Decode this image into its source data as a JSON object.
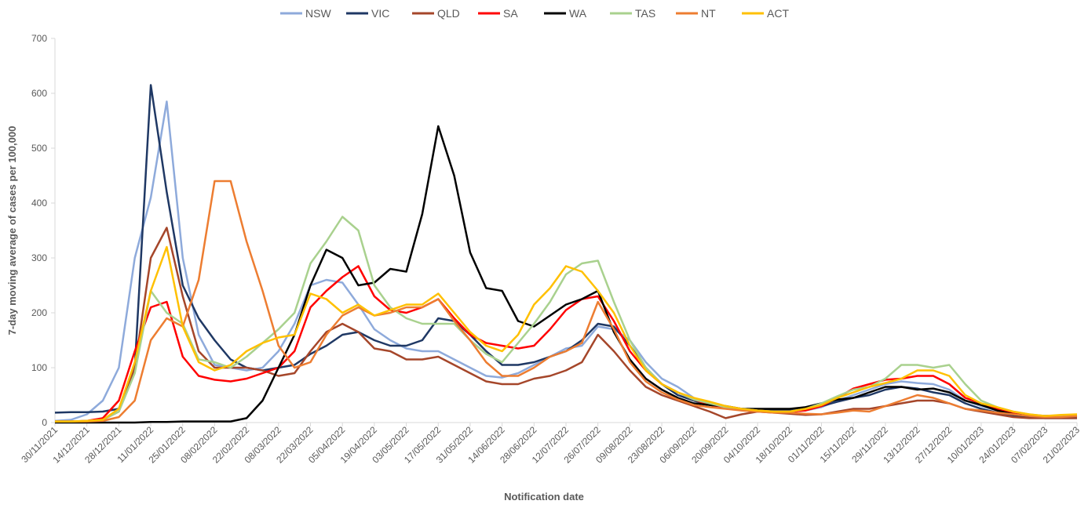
{
  "chart_data": {
    "type": "line",
    "y_label": "7-day moving average of cases per 100,000",
    "x_label": "Notification date",
    "categories": [
      "30/11/2021",
      null,
      "14/12/2021",
      null,
      "28/12/2021",
      null,
      "11/01/2022",
      null,
      "25/01/2022",
      null,
      "08/02/2022",
      null,
      "22/02/2022",
      null,
      "08/03/2022",
      null,
      "22/03/2022",
      null,
      "05/04/2022",
      null,
      "19/04/2022",
      null,
      "03/05/2022",
      null,
      "17/05/2022",
      null,
      "31/05/2022",
      null,
      "14/06/2022",
      null,
      "28/06/2022",
      null,
      "12/07/2022",
      null,
      "26/07/2022",
      null,
      "09/08/2022",
      null,
      "23/08/2022",
      null,
      "06/09/2022",
      null,
      "20/09/2022",
      null,
      "04/10/2022",
      null,
      "18/10/2022",
      null,
      "01/11/2022",
      null,
      "15/11/2022",
      null,
      "29/11/2022",
      null,
      "13/12/2022",
      null,
      "27/12/2022",
      null,
      "10/01/2023",
      null,
      "24/01/2023",
      null,
      "07/02/2023",
      null,
      "21/02/2023"
    ],
    "ylim": [
      0,
      700
    ],
    "yticks": [
      0,
      100,
      200,
      300,
      400,
      500,
      600,
      700
    ],
    "grid": false,
    "legend": "top",
    "series": [
      {
        "name": "NSW",
        "color": "#8eaadb",
        "values": [
          3,
          5,
          15,
          40,
          100,
          300,
          410,
          585,
          300,
          160,
          105,
          100,
          95,
          100,
          130,
          180,
          250,
          260,
          255,
          215,
          170,
          150,
          135,
          130,
          130,
          115,
          100,
          85,
          82,
          90,
          105,
          120,
          135,
          140,
          175,
          170,
          150,
          110,
          80,
          65,
          45,
          35,
          28,
          25,
          22,
          20,
          20,
          22,
          28,
          40,
          50,
          60,
          70,
          75,
          72,
          70,
          60,
          40,
          30,
          22,
          15,
          12,
          10,
          10,
          10
        ]
      },
      {
        "name": "VIC",
        "color": "#1f3864",
        "values": [
          18,
          19,
          19,
          20,
          25,
          100,
          615,
          420,
          250,
          190,
          150,
          115,
          100,
          95,
          100,
          105,
          125,
          140,
          160,
          165,
          150,
          140,
          140,
          150,
          190,
          185,
          160,
          130,
          105,
          105,
          110,
          120,
          130,
          150,
          180,
          175,
          140,
          100,
          70,
          50,
          40,
          32,
          28,
          25,
          23,
          22,
          22,
          25,
          30,
          38,
          45,
          50,
          60,
          65,
          62,
          55,
          50,
          35,
          25,
          18,
          12,
          10,
          8,
          8,
          8
        ]
      },
      {
        "name": "QLD",
        "color": "#a5462a",
        "values": [
          2,
          2,
          3,
          5,
          20,
          100,
          300,
          355,
          230,
          130,
          100,
          100,
          100,
          95,
          85,
          90,
          130,
          165,
          180,
          165,
          135,
          130,
          115,
          115,
          120,
          105,
          90,
          75,
          70,
          70,
          80,
          85,
          95,
          110,
          160,
          130,
          95,
          65,
          50,
          40,
          30,
          20,
          8,
          15,
          20,
          18,
          16,
          14,
          15,
          20,
          25,
          25,
          30,
          35,
          40,
          40,
          35,
          25,
          20,
          15,
          10,
          8,
          8,
          8,
          8
        ]
      },
      {
        "name": "SA",
        "color": "#ff0000",
        "values": [
          2,
          2,
          3,
          8,
          40,
          130,
          210,
          220,
          120,
          85,
          78,
          75,
          80,
          90,
          100,
          130,
          210,
          240,
          265,
          285,
          230,
          205,
          200,
          210,
          225,
          190,
          160,
          145,
          140,
          135,
          140,
          170,
          205,
          225,
          230,
          185,
          130,
          95,
          70,
          55,
          42,
          32,
          28,
          24,
          22,
          20,
          20,
          22,
          30,
          45,
          62,
          70,
          78,
          80,
          85,
          85,
          70,
          45,
          35,
          25,
          18,
          14,
          12,
          12,
          12
        ]
      },
      {
        "name": "WA",
        "color": "#000000",
        "values": [
          0,
          0,
          0,
          0,
          0,
          0,
          1,
          1,
          2,
          2,
          2,
          2,
          8,
          40,
          100,
          160,
          250,
          315,
          300,
          250,
          255,
          280,
          275,
          380,
          540,
          450,
          310,
          245,
          240,
          185,
          175,
          195,
          215,
          225,
          240,
          165,
          115,
          80,
          60,
          45,
          35,
          32,
          30,
          25,
          25,
          25,
          25,
          28,
          35,
          42,
          45,
          55,
          65,
          65,
          60,
          62,
          55,
          40,
          32,
          22,
          15,
          12,
          12,
          12,
          12
        ]
      },
      {
        "name": "TAS",
        "color": "#a9d18e",
        "values": [
          2,
          2,
          3,
          5,
          20,
          90,
          240,
          200,
          180,
          115,
          110,
          100,
          120,
          145,
          170,
          200,
          290,
          330,
          375,
          350,
          250,
          210,
          190,
          180,
          180,
          180,
          150,
          125,
          110,
          145,
          180,
          220,
          270,
          290,
          295,
          220,
          150,
          100,
          70,
          55,
          42,
          35,
          28,
          25,
          22,
          20,
          20,
          25,
          35,
          48,
          60,
          65,
          80,
          105,
          105,
          100,
          105,
          70,
          40,
          28,
          20,
          15,
          12,
          12,
          14
        ]
      },
      {
        "name": "NT",
        "color": "#ed7d31",
        "values": [
          2,
          2,
          2,
          3,
          10,
          40,
          150,
          190,
          175,
          260,
          440,
          440,
          330,
          240,
          140,
          100,
          110,
          160,
          195,
          210,
          195,
          200,
          210,
          210,
          225,
          185,
          150,
          110,
          85,
          85,
          100,
          120,
          130,
          145,
          220,
          170,
          110,
          75,
          55,
          42,
          32,
          28,
          25,
          22,
          20,
          18,
          18,
          16,
          15,
          18,
          22,
          20,
          30,
          40,
          50,
          45,
          35,
          25,
          22,
          18,
          15,
          12,
          10,
          10,
          12
        ]
      },
      {
        "name": "ACT",
        "color": "#ffc000",
        "values": [
          2,
          2,
          3,
          5,
          25,
          110,
          240,
          320,
          175,
          110,
          95,
          105,
          130,
          145,
          155,
          160,
          235,
          225,
          200,
          215,
          195,
          205,
          215,
          215,
          235,
          200,
          165,
          140,
          130,
          160,
          215,
          245,
          285,
          275,
          240,
          200,
          140,
          95,
          70,
          55,
          45,
          38,
          30,
          25,
          22,
          20,
          20,
          25,
          32,
          45,
          55,
          65,
          72,
          80,
          95,
          95,
          85,
          50,
          35,
          28,
          20,
          15,
          12,
          14,
          15
        ]
      }
    ]
  }
}
